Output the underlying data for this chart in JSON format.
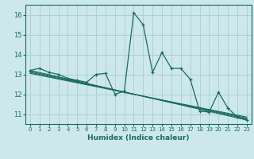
{
  "title": "",
  "xlabel": "Humidex (Indice chaleur)",
  "ylabel": "",
  "bg_color": "#cde8ec",
  "grid_color": "#b0d0d5",
  "line_color": "#1a6b60",
  "xlim": [
    -0.5,
    23.5
  ],
  "ylim": [
    10.5,
    16.5
  ],
  "yticks": [
    11,
    12,
    13,
    14,
    15,
    16
  ],
  "xticks": [
    0,
    1,
    2,
    3,
    4,
    5,
    6,
    7,
    8,
    9,
    10,
    11,
    12,
    13,
    14,
    15,
    16,
    17,
    18,
    19,
    20,
    21,
    22,
    23
  ],
  "main_x": [
    0,
    1,
    2,
    3,
    4,
    5,
    6,
    7,
    8,
    9,
    10,
    11,
    12,
    13,
    14,
    15,
    16,
    17,
    18,
    19,
    20,
    21,
    22,
    23
  ],
  "main_y": [
    13.2,
    13.3,
    13.1,
    13.0,
    12.8,
    12.7,
    12.6,
    13.0,
    13.05,
    12.0,
    12.15,
    16.1,
    15.5,
    13.1,
    14.1,
    13.3,
    13.3,
    12.75,
    11.15,
    11.1,
    12.1,
    11.3,
    10.85,
    10.7
  ],
  "trend_lines": [
    {
      "x0": 0,
      "y0": 13.2,
      "x1": 23,
      "y1": 10.7
    },
    {
      "x0": 0,
      "y0": 13.15,
      "x1": 23,
      "y1": 10.75
    },
    {
      "x0": 0,
      "y0": 13.1,
      "x1": 23,
      "y1": 10.8
    },
    {
      "x0": 0,
      "y0": 13.05,
      "x1": 23,
      "y1": 10.85
    }
  ]
}
